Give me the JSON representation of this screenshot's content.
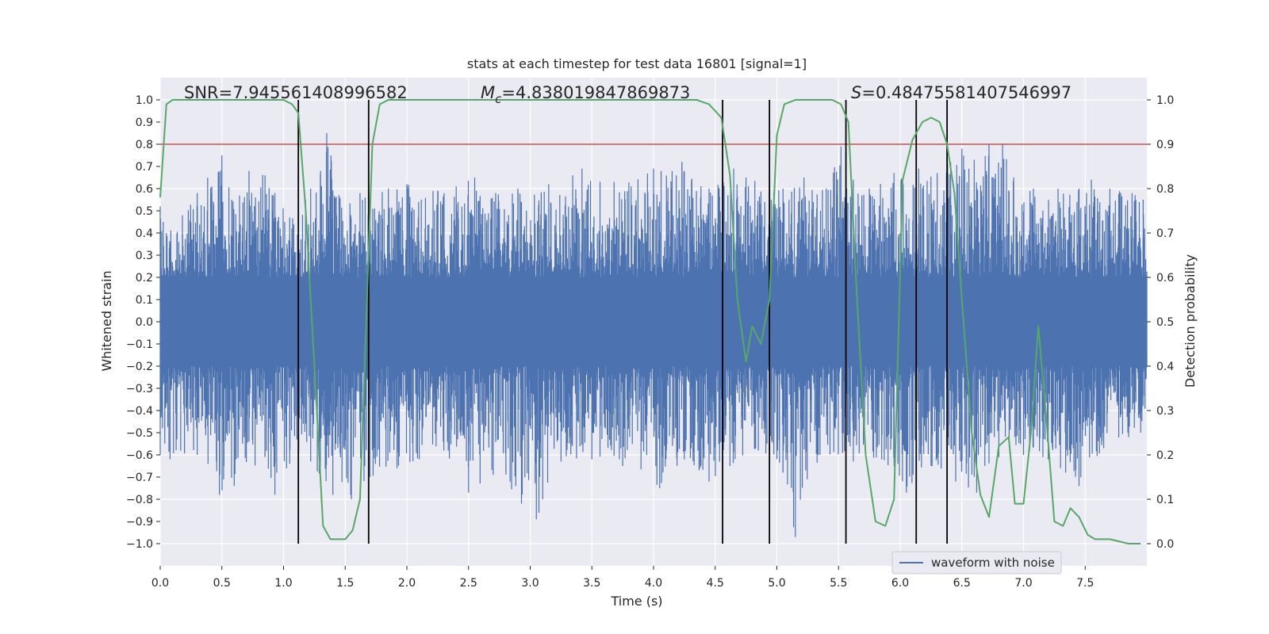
{
  "chart_data": {
    "type": "line",
    "title": "stats at each timestep for test data 16801 [signal=1]",
    "xlabel": "Time (s)",
    "ylabel": "Whitened strain",
    "y2label": "Detection probability",
    "xlim": [
      0.0,
      8.0
    ],
    "ylim": [
      -1.1,
      1.1
    ],
    "y2lim": [
      -0.05,
      1.05
    ],
    "x_ticks": [
      0.0,
      0.5,
      1.0,
      1.5,
      2.0,
      2.5,
      3.0,
      3.5,
      4.0,
      4.5,
      5.0,
      5.5,
      6.0,
      6.5,
      7.0,
      7.5
    ],
    "y_ticks": [
      -1.0,
      -0.9,
      -0.8,
      -0.7,
      -0.6,
      -0.5,
      -0.4,
      -0.3,
      -0.2,
      -0.1,
      0.0,
      0.1,
      0.2,
      0.3,
      0.4,
      0.5,
      0.6,
      0.7,
      0.8,
      0.9,
      1.0
    ],
    "y2_ticks": [
      0.0,
      0.1,
      0.2,
      0.3,
      0.4,
      0.5,
      0.6,
      0.7,
      0.8,
      0.9,
      1.0
    ],
    "grid": true,
    "legend": {
      "position": "lower-right",
      "entries": [
        "waveform with noise"
      ]
    },
    "annotations": {
      "snr": "SNR=7.945561408996582",
      "mc_symbol": "M",
      "mc_sub": "c",
      "mc_value": "=4.838019847869873",
      "s_symbol": "S",
      "s_value": "=0.48475581407546997"
    },
    "threshold": {
      "axis": "y2",
      "value": 0.9,
      "color": "#c44e52"
    },
    "vlines": [
      1.12,
      1.69,
      4.56,
      4.94,
      5.56,
      6.13,
      6.38
    ],
    "series": [
      {
        "name": "waveform with noise",
        "axis": "y",
        "color": "#4c72b0",
        "noise_envelope": 0.2,
        "peaks": [
          {
            "x": 0.0,
            "y": 0.52
          },
          {
            "x": 0.05,
            "y": 0.4
          },
          {
            "x": 0.18,
            "y": 0.48
          },
          {
            "x": 0.3,
            "y": 0.58
          },
          {
            "x": 0.5,
            "y": 0.75
          },
          {
            "x": 0.58,
            "y": 0.55
          },
          {
            "x": 0.72,
            "y": 0.68
          },
          {
            "x": 0.85,
            "y": 0.66
          },
          {
            "x": 0.93,
            "y": 0.58
          },
          {
            "x": 1.05,
            "y": 0.47
          },
          {
            "x": 1.22,
            "y": 0.6
          },
          {
            "x": 1.3,
            "y": 0.68
          },
          {
            "x": 1.35,
            "y": 0.85
          },
          {
            "x": 1.45,
            "y": 0.57
          },
          {
            "x": 1.62,
            "y": 0.58
          },
          {
            "x": 1.85,
            "y": 0.6
          },
          {
            "x": 2.0,
            "y": 0.62
          },
          {
            "x": 2.25,
            "y": 0.59
          },
          {
            "x": 2.4,
            "y": 0.61
          },
          {
            "x": 2.55,
            "y": 0.65
          },
          {
            "x": 2.72,
            "y": 0.58
          },
          {
            "x": 2.9,
            "y": 0.6
          },
          {
            "x": 3.15,
            "y": 0.62
          },
          {
            "x": 3.42,
            "y": 0.69
          },
          {
            "x": 3.68,
            "y": 0.63
          },
          {
            "x": 4.0,
            "y": 0.69
          },
          {
            "x": 4.23,
            "y": 0.72
          },
          {
            "x": 4.45,
            "y": 0.6
          },
          {
            "x": 4.65,
            "y": 0.69
          },
          {
            "x": 4.75,
            "y": 0.65
          },
          {
            "x": 5.05,
            "y": 0.6
          },
          {
            "x": 5.22,
            "y": 0.65
          },
          {
            "x": 5.4,
            "y": 0.6
          },
          {
            "x": 5.52,
            "y": 0.79
          },
          {
            "x": 5.62,
            "y": 0.64
          },
          {
            "x": 5.75,
            "y": 0.6
          },
          {
            "x": 5.95,
            "y": 0.67
          },
          {
            "x": 6.15,
            "y": 0.69
          },
          {
            "x": 6.3,
            "y": 0.67
          },
          {
            "x": 6.5,
            "y": 0.78
          },
          {
            "x": 6.6,
            "y": 0.73
          },
          {
            "x": 6.72,
            "y": 0.8
          },
          {
            "x": 6.83,
            "y": 0.8
          },
          {
            "x": 6.92,
            "y": 0.65
          },
          {
            "x": 7.08,
            "y": 0.6
          },
          {
            "x": 7.28,
            "y": 0.6
          },
          {
            "x": 7.45,
            "y": 0.6
          },
          {
            "x": 7.55,
            "y": 0.64
          },
          {
            "x": 7.7,
            "y": 0.6
          },
          {
            "x": 7.88,
            "y": 0.58
          },
          {
            "x": 7.97,
            "y": 0.55
          }
        ],
        "troughs": [
          {
            "x": 0.0,
            "y": -0.6
          },
          {
            "x": 0.08,
            "y": -0.62
          },
          {
            "x": 0.3,
            "y": -0.6
          },
          {
            "x": 0.48,
            "y": -0.78
          },
          {
            "x": 0.6,
            "y": -0.74
          },
          {
            "x": 0.85,
            "y": -0.61
          },
          {
            "x": 0.93,
            "y": -0.78
          },
          {
            "x": 1.05,
            "y": -0.64
          },
          {
            "x": 1.22,
            "y": -0.63
          },
          {
            "x": 1.4,
            "y": -0.78
          },
          {
            "x": 1.55,
            "y": -0.8
          },
          {
            "x": 1.7,
            "y": -0.7
          },
          {
            "x": 1.92,
            "y": -0.66
          },
          {
            "x": 2.1,
            "y": -0.62
          },
          {
            "x": 2.3,
            "y": -0.58
          },
          {
            "x": 2.5,
            "y": -0.77
          },
          {
            "x": 2.7,
            "y": -0.69
          },
          {
            "x": 3.05,
            "y": -0.89
          },
          {
            "x": 3.25,
            "y": -0.63
          },
          {
            "x": 3.5,
            "y": -0.62
          },
          {
            "x": 3.75,
            "y": -0.65
          },
          {
            "x": 4.05,
            "y": -0.75
          },
          {
            "x": 4.25,
            "y": -0.62
          },
          {
            "x": 4.45,
            "y": -0.72
          },
          {
            "x": 4.62,
            "y": -0.65
          },
          {
            "x": 4.85,
            "y": -0.58
          },
          {
            "x": 5.05,
            "y": -0.68
          },
          {
            "x": 5.15,
            "y": -0.97
          },
          {
            "x": 5.35,
            "y": -0.6
          },
          {
            "x": 5.62,
            "y": -0.63
          },
          {
            "x": 5.85,
            "y": -0.62
          },
          {
            "x": 6.05,
            "y": -0.77
          },
          {
            "x": 6.25,
            "y": -0.65
          },
          {
            "x": 6.45,
            "y": -0.72
          },
          {
            "x": 6.62,
            "y": -0.77
          },
          {
            "x": 6.8,
            "y": -0.61
          },
          {
            "x": 7.0,
            "y": -0.6
          },
          {
            "x": 7.2,
            "y": -0.62
          },
          {
            "x": 7.3,
            "y": -0.66
          },
          {
            "x": 7.45,
            "y": -0.74
          },
          {
            "x": 7.65,
            "y": -0.57
          },
          {
            "x": 7.95,
            "y": -0.5
          }
        ]
      },
      {
        "name": "",
        "axis": "y2",
        "color": "#55a868",
        "x": [
          0.0,
          0.05,
          0.1,
          0.2,
          0.3,
          0.4,
          0.5,
          0.6,
          0.7,
          0.8,
          0.9,
          1.0,
          1.07,
          1.12,
          1.18,
          1.25,
          1.32,
          1.38,
          1.43,
          1.5,
          1.56,
          1.62,
          1.67,
          1.72,
          1.78,
          1.85,
          2.0,
          2.2,
          2.4,
          2.6,
          2.8,
          3.0,
          3.2,
          3.4,
          3.6,
          3.8,
          4.0,
          4.2,
          4.35,
          4.45,
          4.55,
          4.62,
          4.68,
          4.75,
          4.8,
          4.87,
          4.94,
          5.0,
          5.06,
          5.15,
          5.3,
          5.45,
          5.52,
          5.58,
          5.65,
          5.72,
          5.8,
          5.88,
          5.95,
          6.02,
          6.1,
          6.18,
          6.25,
          6.32,
          6.38,
          6.44,
          6.5,
          6.58,
          6.65,
          6.72,
          6.8,
          6.88,
          6.93,
          7.0,
          7.06,
          7.12,
          7.18,
          7.25,
          7.32,
          7.38,
          7.45,
          7.52,
          7.58,
          7.7,
          7.85,
          7.95
        ],
        "y": [
          0.78,
          0.99,
          1.0,
          1.0,
          1.0,
          1.0,
          1.0,
          1.0,
          1.0,
          1.0,
          1.0,
          1.0,
          0.99,
          0.97,
          0.75,
          0.4,
          0.04,
          0.01,
          0.01,
          0.01,
          0.03,
          0.1,
          0.5,
          0.9,
          0.99,
          1.0,
          1.0,
          1.0,
          1.0,
          1.0,
          1.0,
          1.0,
          1.0,
          1.0,
          1.0,
          1.0,
          1.0,
          1.0,
          1.0,
          0.99,
          0.96,
          0.83,
          0.55,
          0.41,
          0.49,
          0.45,
          0.55,
          0.92,
          0.99,
          1.0,
          1.0,
          1.0,
          0.99,
          0.95,
          0.55,
          0.2,
          0.05,
          0.04,
          0.1,
          0.82,
          0.91,
          0.95,
          0.96,
          0.95,
          0.9,
          0.79,
          0.55,
          0.25,
          0.11,
          0.06,
          0.22,
          0.24,
          0.09,
          0.09,
          0.25,
          0.49,
          0.3,
          0.05,
          0.04,
          0.08,
          0.06,
          0.02,
          0.01,
          0.01,
          0.0,
          0.0
        ]
      }
    ]
  }
}
